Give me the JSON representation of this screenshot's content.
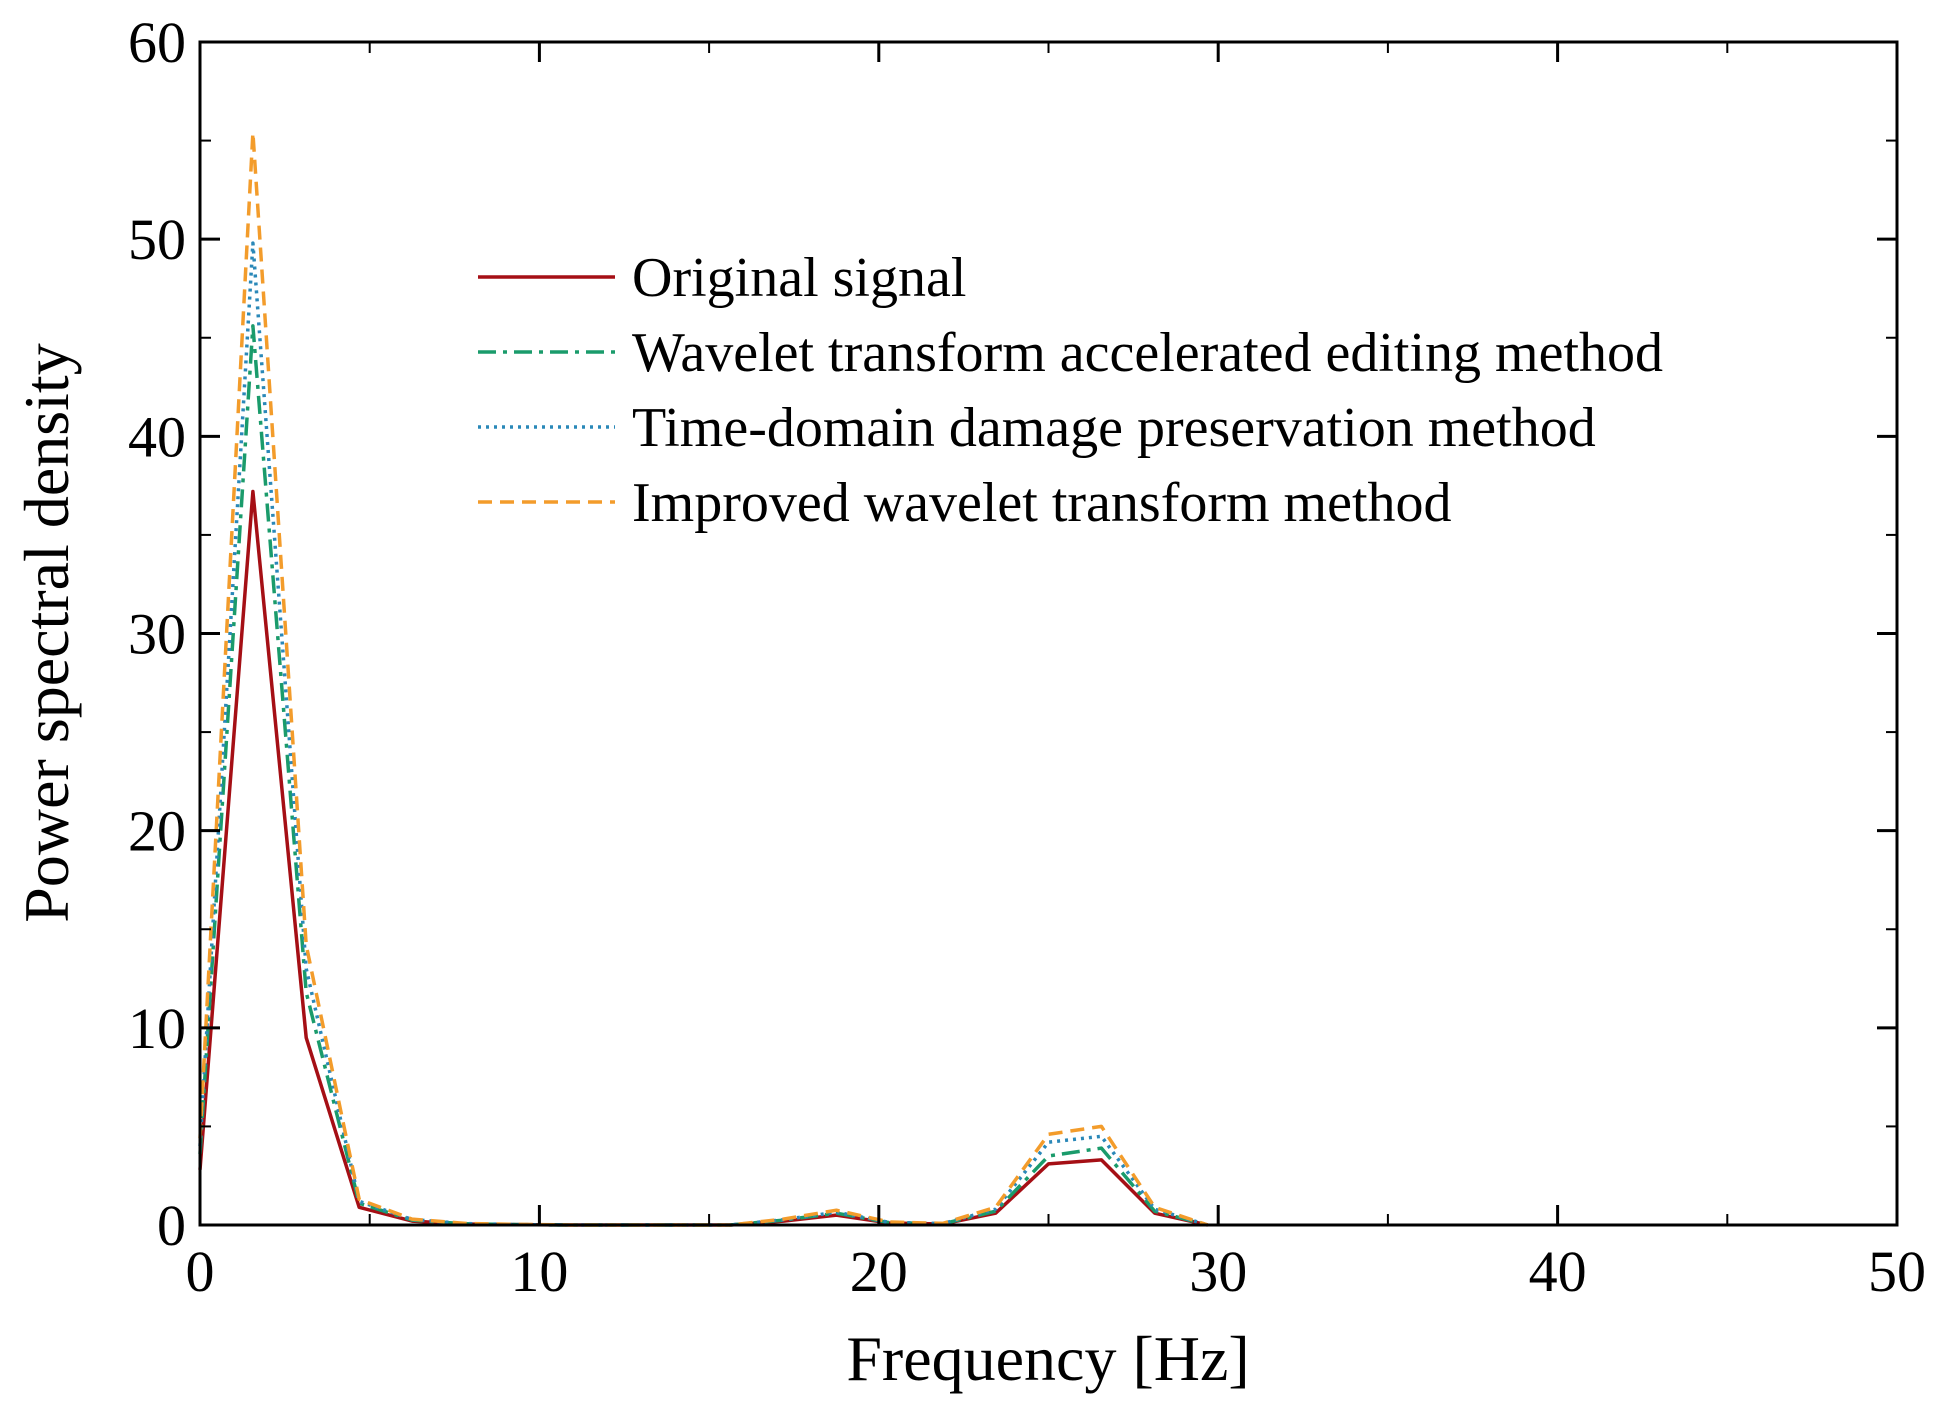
{
  "chart_data": {
    "type": "line",
    "title": "",
    "xlabel": "Frequency [Hz]",
    "ylabel": "Power spectral density",
    "xlim": [
      0,
      50
    ],
    "ylim": [
      0,
      60
    ],
    "xticks": [
      "0",
      "10",
      "20",
      "30",
      "40",
      "50"
    ],
    "yticks": [
      "0",
      "10",
      "20",
      "30",
      "40",
      "50",
      "60"
    ],
    "grid": false,
    "legend_position": "upper-center",
    "x": [
      0,
      1.56,
      3.13,
      4.69,
      6.25,
      7.81,
      9.38,
      10.94,
      12.5,
      14.06,
      15.63,
      17.19,
      18.75,
      20.31,
      21.88,
      23.44,
      25.0,
      26.56,
      28.13,
      29.69
    ],
    "series": [
      {
        "name": "Original signal",
        "color": "#a50f15",
        "dash": "solid",
        "values": [
          2.8,
          37.2,
          9.5,
          0.9,
          0.2,
          0.05,
          0.02,
          0.0,
          0.0,
          0.0,
          0.0,
          0.2,
          0.5,
          0.1,
          0.05,
          0.6,
          3.1,
          3.3,
          0.6,
          0.0
        ]
      },
      {
        "name": "Wavelet transform accelerated editing method",
        "color": "#1a9b6b",
        "dash": "dashdot",
        "values": [
          3.6,
          45.6,
          11.8,
          1.1,
          0.25,
          0.06,
          0.02,
          0.0,
          0.0,
          0.0,
          0.0,
          0.25,
          0.6,
          0.12,
          0.06,
          0.7,
          3.5,
          3.9,
          0.7,
          0.0
        ]
      },
      {
        "name": "Time-domain damage preservation method",
        "color": "#2a88b8",
        "dash": "dotted",
        "values": [
          4.0,
          49.8,
          13.0,
          1.2,
          0.28,
          0.07,
          0.02,
          0.0,
          0.0,
          0.0,
          0.0,
          0.27,
          0.65,
          0.13,
          0.07,
          0.8,
          4.2,
          4.5,
          0.8,
          0.0
        ]
      },
      {
        "name": "Improved wavelet transform method",
        "color": "#f39c2b",
        "dash": "dashed",
        "values": [
          4.4,
          55.4,
          14.2,
          1.3,
          0.3,
          0.08,
          0.03,
          0.0,
          0.0,
          0.0,
          0.0,
          0.3,
          0.75,
          0.15,
          0.08,
          0.9,
          4.6,
          5.0,
          0.9,
          0.0
        ]
      }
    ]
  }
}
